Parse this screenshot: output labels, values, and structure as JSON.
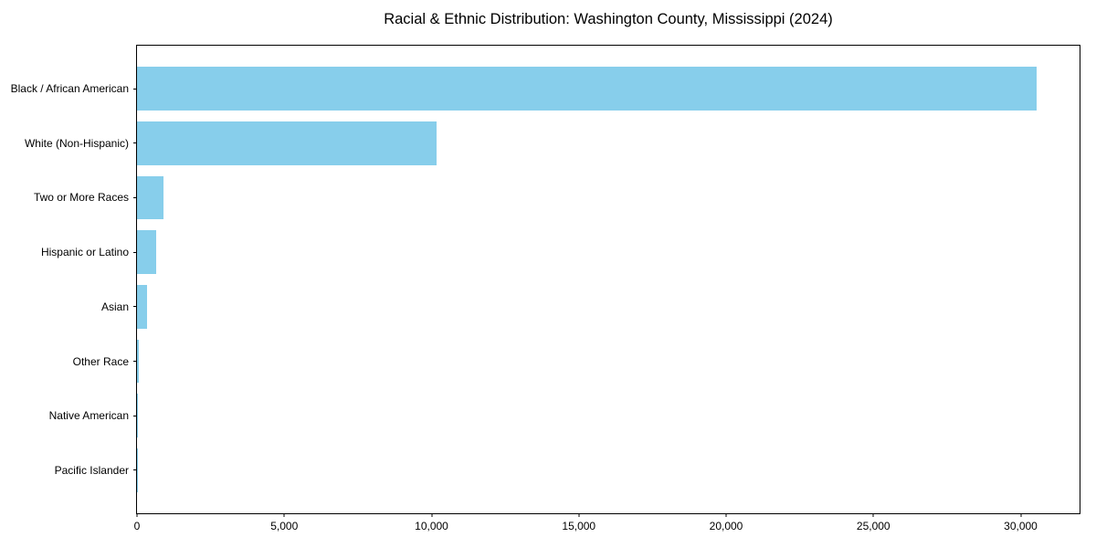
{
  "page": {
    "title": "Racial & Ethnic Distribution: Washington County, Mississippi (2024)"
  },
  "chart_data": {
    "type": "bar",
    "orientation": "horizontal",
    "title": "Racial & Ethnic Distribution: Washington County, Mississippi (2024)",
    "categories": [
      "Black / African American",
      "White (Non-Hispanic)",
      "Two or More Races",
      "Hispanic or Latino",
      "Asian",
      "Other Race",
      "Native American",
      "Pacific Islander"
    ],
    "values": [
      30550,
      10180,
      900,
      650,
      340,
      60,
      35,
      15
    ],
    "xlabel": "",
    "ylabel": "",
    "xlim": [
      0,
      32000
    ],
    "xticks": [
      0,
      5000,
      10000,
      15000,
      20000,
      25000,
      30000
    ],
    "xtick_labels": [
      "0",
      "5,000",
      "10,000",
      "15,000",
      "20,000",
      "25,000",
      "30,000"
    ],
    "bar_color": "#87CEEB",
    "background_color": "#FFFFFF",
    "text_color": "#000000",
    "grid": false,
    "legend": "none"
  }
}
